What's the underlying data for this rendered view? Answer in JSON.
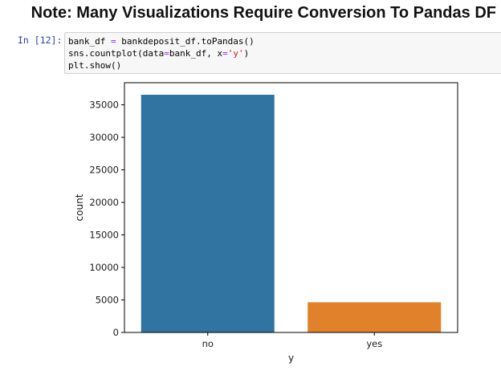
{
  "header": {
    "title": "Note: Many Visualizations Require Conversion To Pandas DF"
  },
  "cell": {
    "prompt": "In [12]:",
    "code_lines": [
      "bank_df = bankdeposit_df.toPandas()",
      "sns.countplot(data=bank_df, x='y')",
      "plt.show()"
    ]
  },
  "chart_data": {
    "type": "bar",
    "categories": [
      "no",
      "yes"
    ],
    "values": [
      36548,
      4640
    ],
    "colors": [
      "#3274a1",
      "#e1812c"
    ],
    "xlabel": "y",
    "ylabel": "count",
    "ylim": [
      0,
      38400
    ],
    "yticks": [
      0,
      5000,
      10000,
      15000,
      20000,
      25000,
      30000,
      35000
    ],
    "grid": false
  }
}
